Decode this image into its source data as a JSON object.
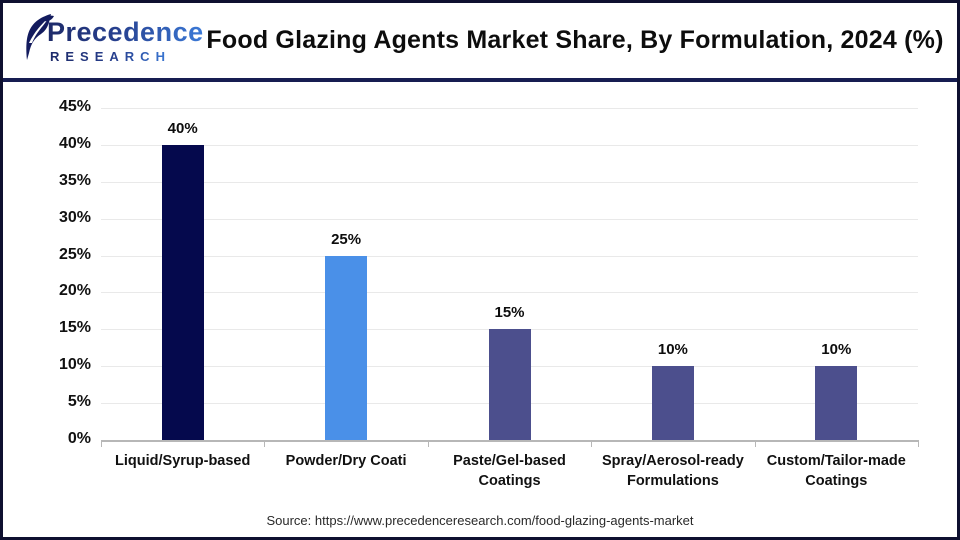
{
  "header": {
    "logo": {
      "name_top": "Precedence",
      "name_bottom": "RESEARCH"
    },
    "title": "Food Glazing Agents Market Share, By Formulation, 2024 (%)"
  },
  "footer": {
    "source": "Source: https://www.precedenceresearch.com/food-glazing-agents-market"
  },
  "chart_data": {
    "type": "bar",
    "title": "Food Glazing Agents Market Share, By Formulation, 2024 (%)",
    "categories": [
      "Liquid/Syrup-based",
      "Powder/Dry Coati",
      "Paste/Gel-based Coatings",
      "Spray/Aerosol-ready Formulations",
      "Custom/Tailor-made Coatings"
    ],
    "category_label_lines": [
      [
        "Liquid/Syrup-based"
      ],
      [
        "Powder/Dry Coati"
      ],
      [
        "Paste/Gel-based",
        "Coatings"
      ],
      [
        "Spray/Aerosol-ready",
        "Formulations"
      ],
      [
        "Custom/Tailor-made",
        "Coatings"
      ]
    ],
    "values": [
      40,
      25,
      15,
      10,
      10
    ],
    "value_labels": [
      "40%",
      "25%",
      "15%",
      "10%",
      "10%"
    ],
    "bar_colors": [
      "#05094d",
      "#4a90e8",
      "#4c4f8d",
      "#4c4f8d",
      "#4c4f8d"
    ],
    "xlabel": "",
    "ylabel": "",
    "ylim": [
      0,
      45
    ],
    "ytick_step": 5,
    "ytick_labels": [
      "0%",
      "5%",
      "10%",
      "15%",
      "20%",
      "25%",
      "30%",
      "35%",
      "40%",
      "45%"
    ],
    "grid": true,
    "legend": "none",
    "colors": {
      "grid": "#e9e9e9",
      "axis": "#b7b7b7",
      "text": "#111111",
      "header_divider": "#161d51",
      "logo_navy": "#1d2a69",
      "logo_blue": "#3b7ad8"
    }
  }
}
